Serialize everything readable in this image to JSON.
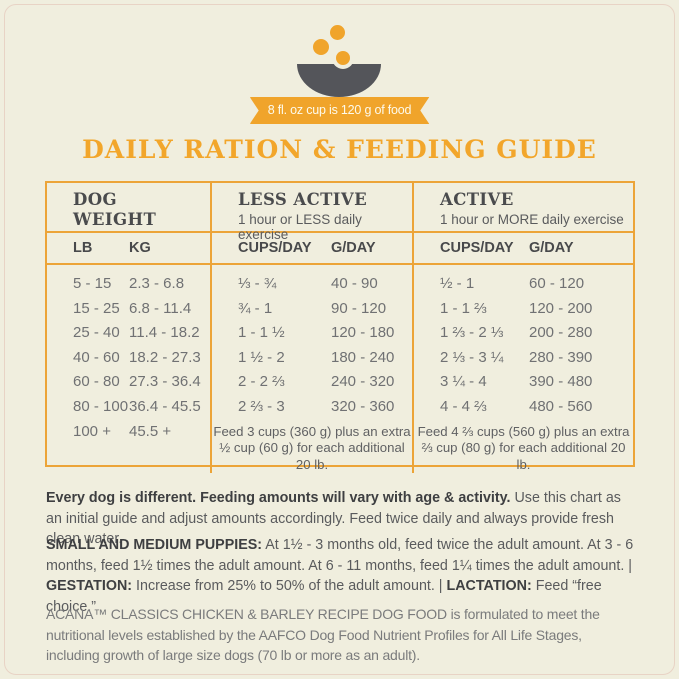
{
  "badge": {
    "text": "8 fl. oz cup is 120 g of food"
  },
  "title": "DAILY RATION & FEEDING GUIDE",
  "table": {
    "weight_header": "DOG WEIGHT",
    "less_active_title": "LESS ACTIVE",
    "less_active_subtitle": "1 hour or LESS daily exercise",
    "active_title": "ACTIVE",
    "active_subtitle": "1 hour or MORE daily exercise",
    "col_lb": "LB",
    "col_kg": "KG",
    "col_cups": "CUPS/DAY",
    "col_g": "G/DAY",
    "rows": [
      {
        "lb": "5 - 15",
        "kg": "2.3 - 6.8",
        "la_cups": "⅓ - ¾",
        "la_g": "40 - 90",
        "a_cups": "½ - 1",
        "a_g": "60 - 120"
      },
      {
        "lb": "15 - 25",
        "kg": "6.8 - 11.4",
        "la_cups": "¾ - 1",
        "la_g": "90 - 120",
        "a_cups": "1 - 1 ⅔",
        "a_g": "120 - 200"
      },
      {
        "lb": "25 - 40",
        "kg": "11.4 - 18.2",
        "la_cups": "1 - 1 ½",
        "la_g": "120 - 180",
        "a_cups": "1 ⅔ - 2 ⅓",
        "a_g": "200 - 280"
      },
      {
        "lb": "40 - 60",
        "kg": "18.2 - 27.3",
        "la_cups": "1 ½ - 2",
        "la_g": "180 - 240",
        "a_cups": "2 ⅓ - 3 ¼",
        "a_g": "280 - 390"
      },
      {
        "lb": "60 - 80",
        "kg": "27.3 - 36.4",
        "la_cups": "2 - 2 ⅔",
        "la_g": "240 - 320",
        "a_cups": "3 ¼ - 4",
        "a_g": "390 - 480"
      },
      {
        "lb": "80 - 100",
        "kg": "36.4 - 45.5",
        "la_cups": "2 ⅔ - 3",
        "la_g": "320 - 360",
        "a_cups": "4 - 4 ⅔",
        "a_g": "480 - 560"
      }
    ],
    "last_row": {
      "lb": "100 +",
      "kg": "45.5 +"
    },
    "less_active_note_l1": "Feed 3 cups (360 g) plus an extra",
    "less_active_note_l2": "½ cup (60 g) for each additional 20 lb.",
    "active_note_l1": "Feed 4 ⅔ cups (560 g) plus an extra",
    "active_note_l2": "⅔ cup (80 g) for each additional 20 lb."
  },
  "notes": {
    "p1_bold": "Every dog is different. Feeding amounts will vary with age & activity.",
    "p1_rest": " Use this chart as an initial guide and adjust amounts accordingly. Feed twice daily and always provide fresh clean water.",
    "p2_label1": "SMALL AND MEDIUM PUPPIES:",
    "p2_text1": " At 1½ - 3 months old, feed twice the adult amount. At 3 - 6 months, feed 1½ times the adult amount. At 6 - 11 months, feed 1¼ times the adult amount.  |  ",
    "p2_label2": "GESTATION:",
    "p2_text2": " Increase from 25% to 50% of the adult amount.  |  ",
    "p2_label3": "LACTATION:",
    "p2_text3": " Feed “free choice.”",
    "p3_brand": "ACANA™ CLASSICS CHICKEN & BARLEY RECIPE DOG FOOD",
    "p3_rest": " is formulated to meet the nutritional levels established by the AAFCO Dog Food Nutrient Profiles for All Life Stages, including growth of large size dogs (70 lb or more as an adult)."
  },
  "colors": {
    "accent_orange": "#F0A42B",
    "background_cream": "#F0EEDE",
    "bowl_gray": "#54555A",
    "heading_gray": "#4A4B4D",
    "body_gray": "#707173"
  }
}
